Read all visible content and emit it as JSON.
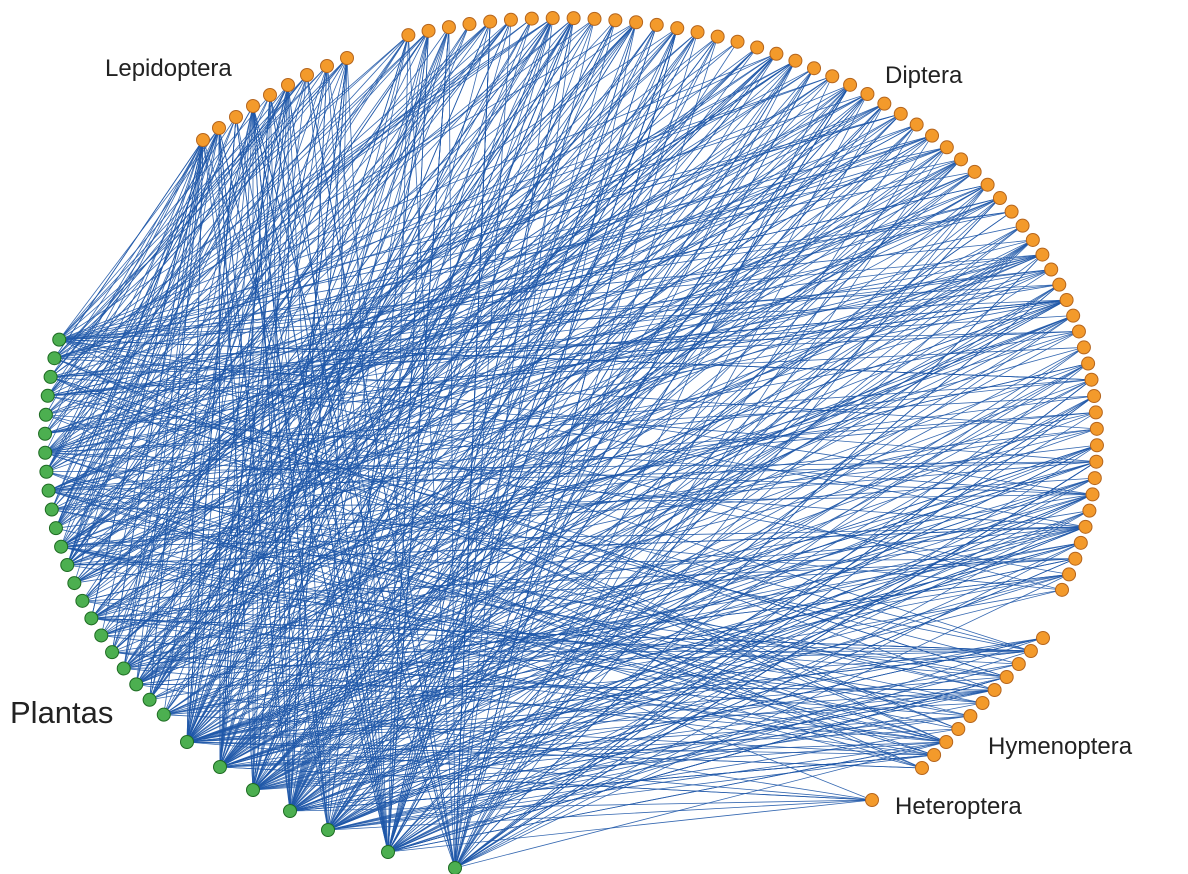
{
  "groups": {
    "lepidoptera": "Lepidoptera",
    "diptera": "Diptera",
    "hymenoptera": "Hymenoptera",
    "heteroptera": "Heteroptera",
    "plantas": "Plantas"
  }
}
